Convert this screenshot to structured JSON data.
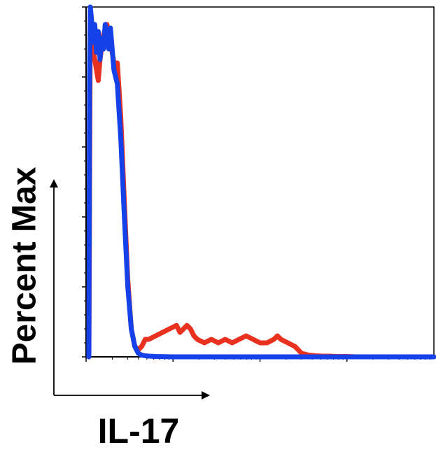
{
  "chart_data": {
    "type": "line",
    "title": "",
    "xlabel": "IL-17",
    "ylabel": "Percent Max",
    "xlim": [
      0,
      100
    ],
    "ylim": [
      0,
      100
    ],
    "grid": false,
    "legend": "none",
    "tick_labels_shown": false,
    "series": [
      {
        "color": "#e8321f",
        "x": [
          0.8,
          1.2,
          2,
          3,
          3.5,
          4,
          5,
          6,
          7,
          8,
          9,
          10,
          11,
          12,
          13,
          14,
          15,
          16,
          17,
          18,
          20,
          22,
          24,
          26,
          27,
          28,
          29,
          30,
          31,
          32,
          34,
          36,
          38,
          40,
          42,
          44,
          46,
          48,
          50,
          52,
          54,
          55,
          56,
          58,
          60,
          62,
          64,
          66,
          68,
          70,
          72,
          75,
          78,
          80,
          100
        ],
        "y": [
          0,
          94,
          88,
          82,
          79,
          85,
          92,
          95,
          90,
          84,
          84,
          68,
          44,
          22,
          8,
          3,
          2,
          3,
          5,
          5,
          6,
          7,
          8,
          9,
          7,
          8,
          9,
          8,
          6,
          5,
          4,
          5,
          4,
          5,
          4,
          5,
          6,
          5,
          4,
          4,
          5,
          6,
          5,
          4,
          3,
          1,
          0.5,
          0.3,
          0.2,
          0.2,
          0.1,
          0.1,
          0,
          0,
          0
        ]
      },
      {
        "color": "#1541e8",
        "x": [
          0.8,
          1,
          1.2,
          1.6,
          2,
          2.5,
          3,
          3.5,
          4,
          4.5,
          5,
          5.5,
          6,
          6.5,
          7,
          8,
          9,
          10,
          11,
          12,
          13,
          14,
          15,
          16,
          17,
          18,
          20,
          25,
          30,
          40,
          50,
          60,
          70,
          80,
          100
        ],
        "y": [
          0,
          80,
          100,
          96,
          90,
          95,
          87,
          93,
          85,
          91,
          88,
          95,
          92,
          88,
          94,
          82,
          78,
          62,
          40,
          20,
          8,
          3,
          1,
          0.5,
          0.3,
          0.2,
          0.1,
          0,
          0,
          0,
          0,
          0,
          0,
          0,
          0
        ]
      }
    ]
  }
}
